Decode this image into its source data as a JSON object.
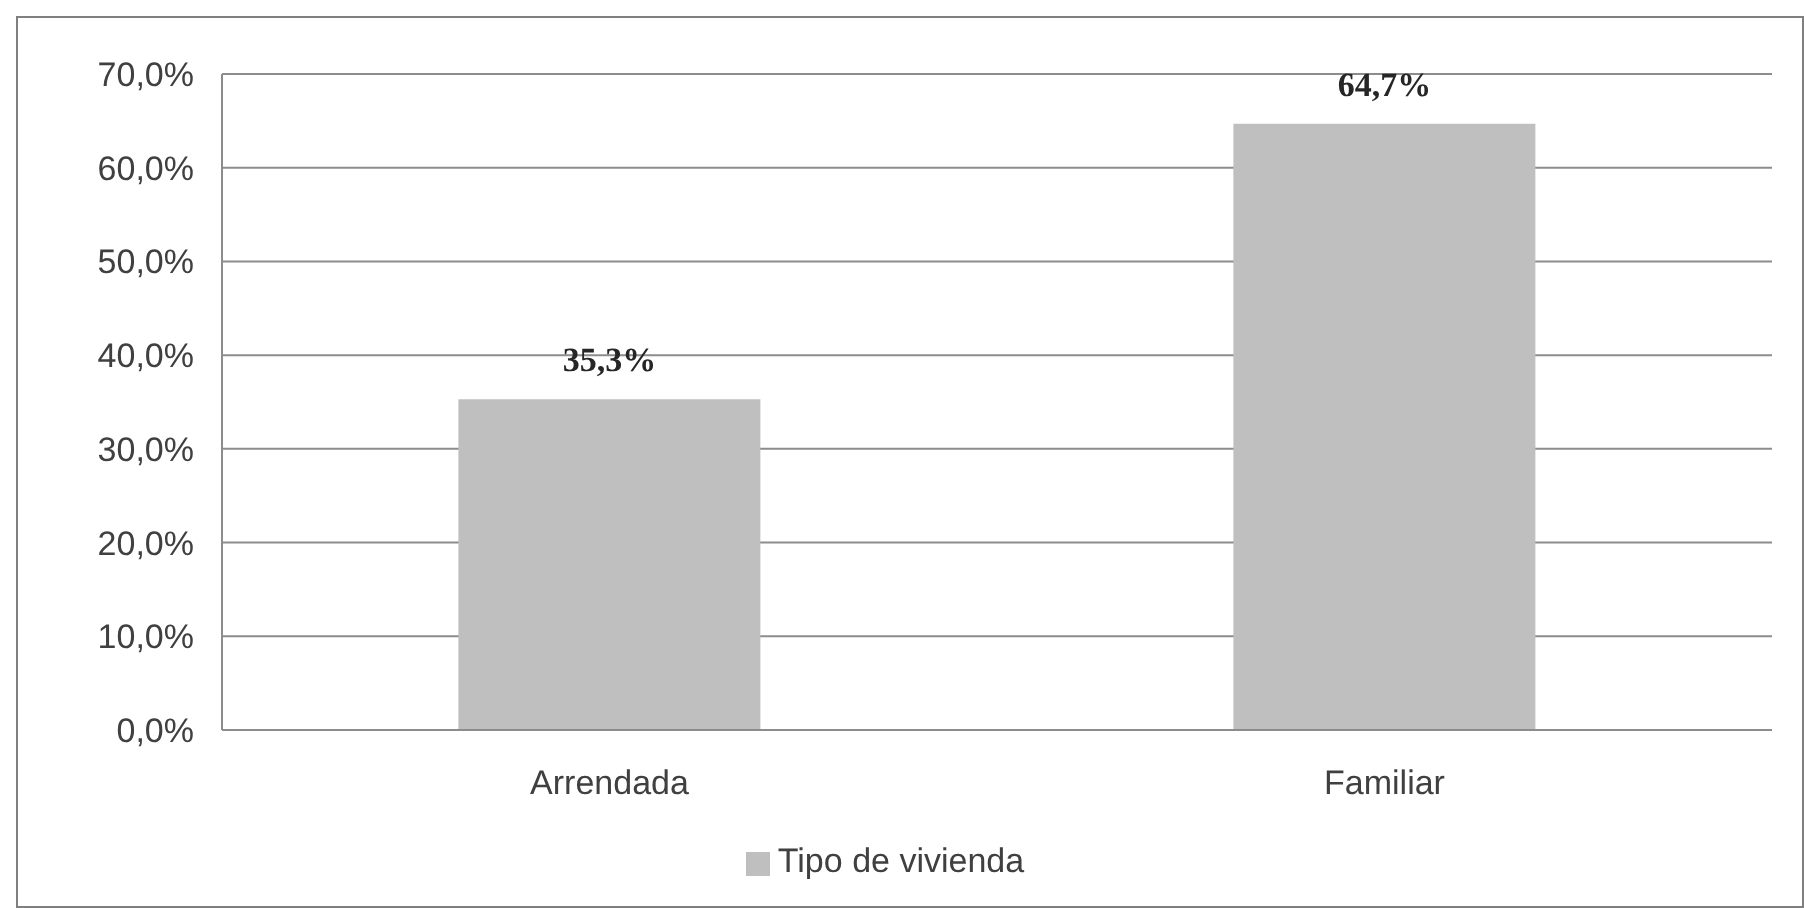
{
  "chart_data": {
    "type": "bar",
    "categories": [
      "Arrendada",
      "Familiar"
    ],
    "series": [
      {
        "name": "Tipo de vivienda",
        "color": "#bfbfbf",
        "values": [
          35.3,
          64.7
        ],
        "value_labels": [
          "35,3%",
          "64,7%"
        ]
      }
    ],
    "ylim": [
      0,
      70
    ],
    "yticks": [
      {
        "value": 0,
        "label": "0,0%"
      },
      {
        "value": 10,
        "label": "10,0%"
      },
      {
        "value": 20,
        "label": "20,0%"
      },
      {
        "value": 30,
        "label": "30,0%"
      },
      {
        "value": 40,
        "label": "40,0%"
      },
      {
        "value": 50,
        "label": "50,0%"
      },
      {
        "value": 60,
        "label": "60,0%"
      },
      {
        "value": 70,
        "label": "70,0%"
      }
    ],
    "grid": "y",
    "legend": "bottom"
  }
}
